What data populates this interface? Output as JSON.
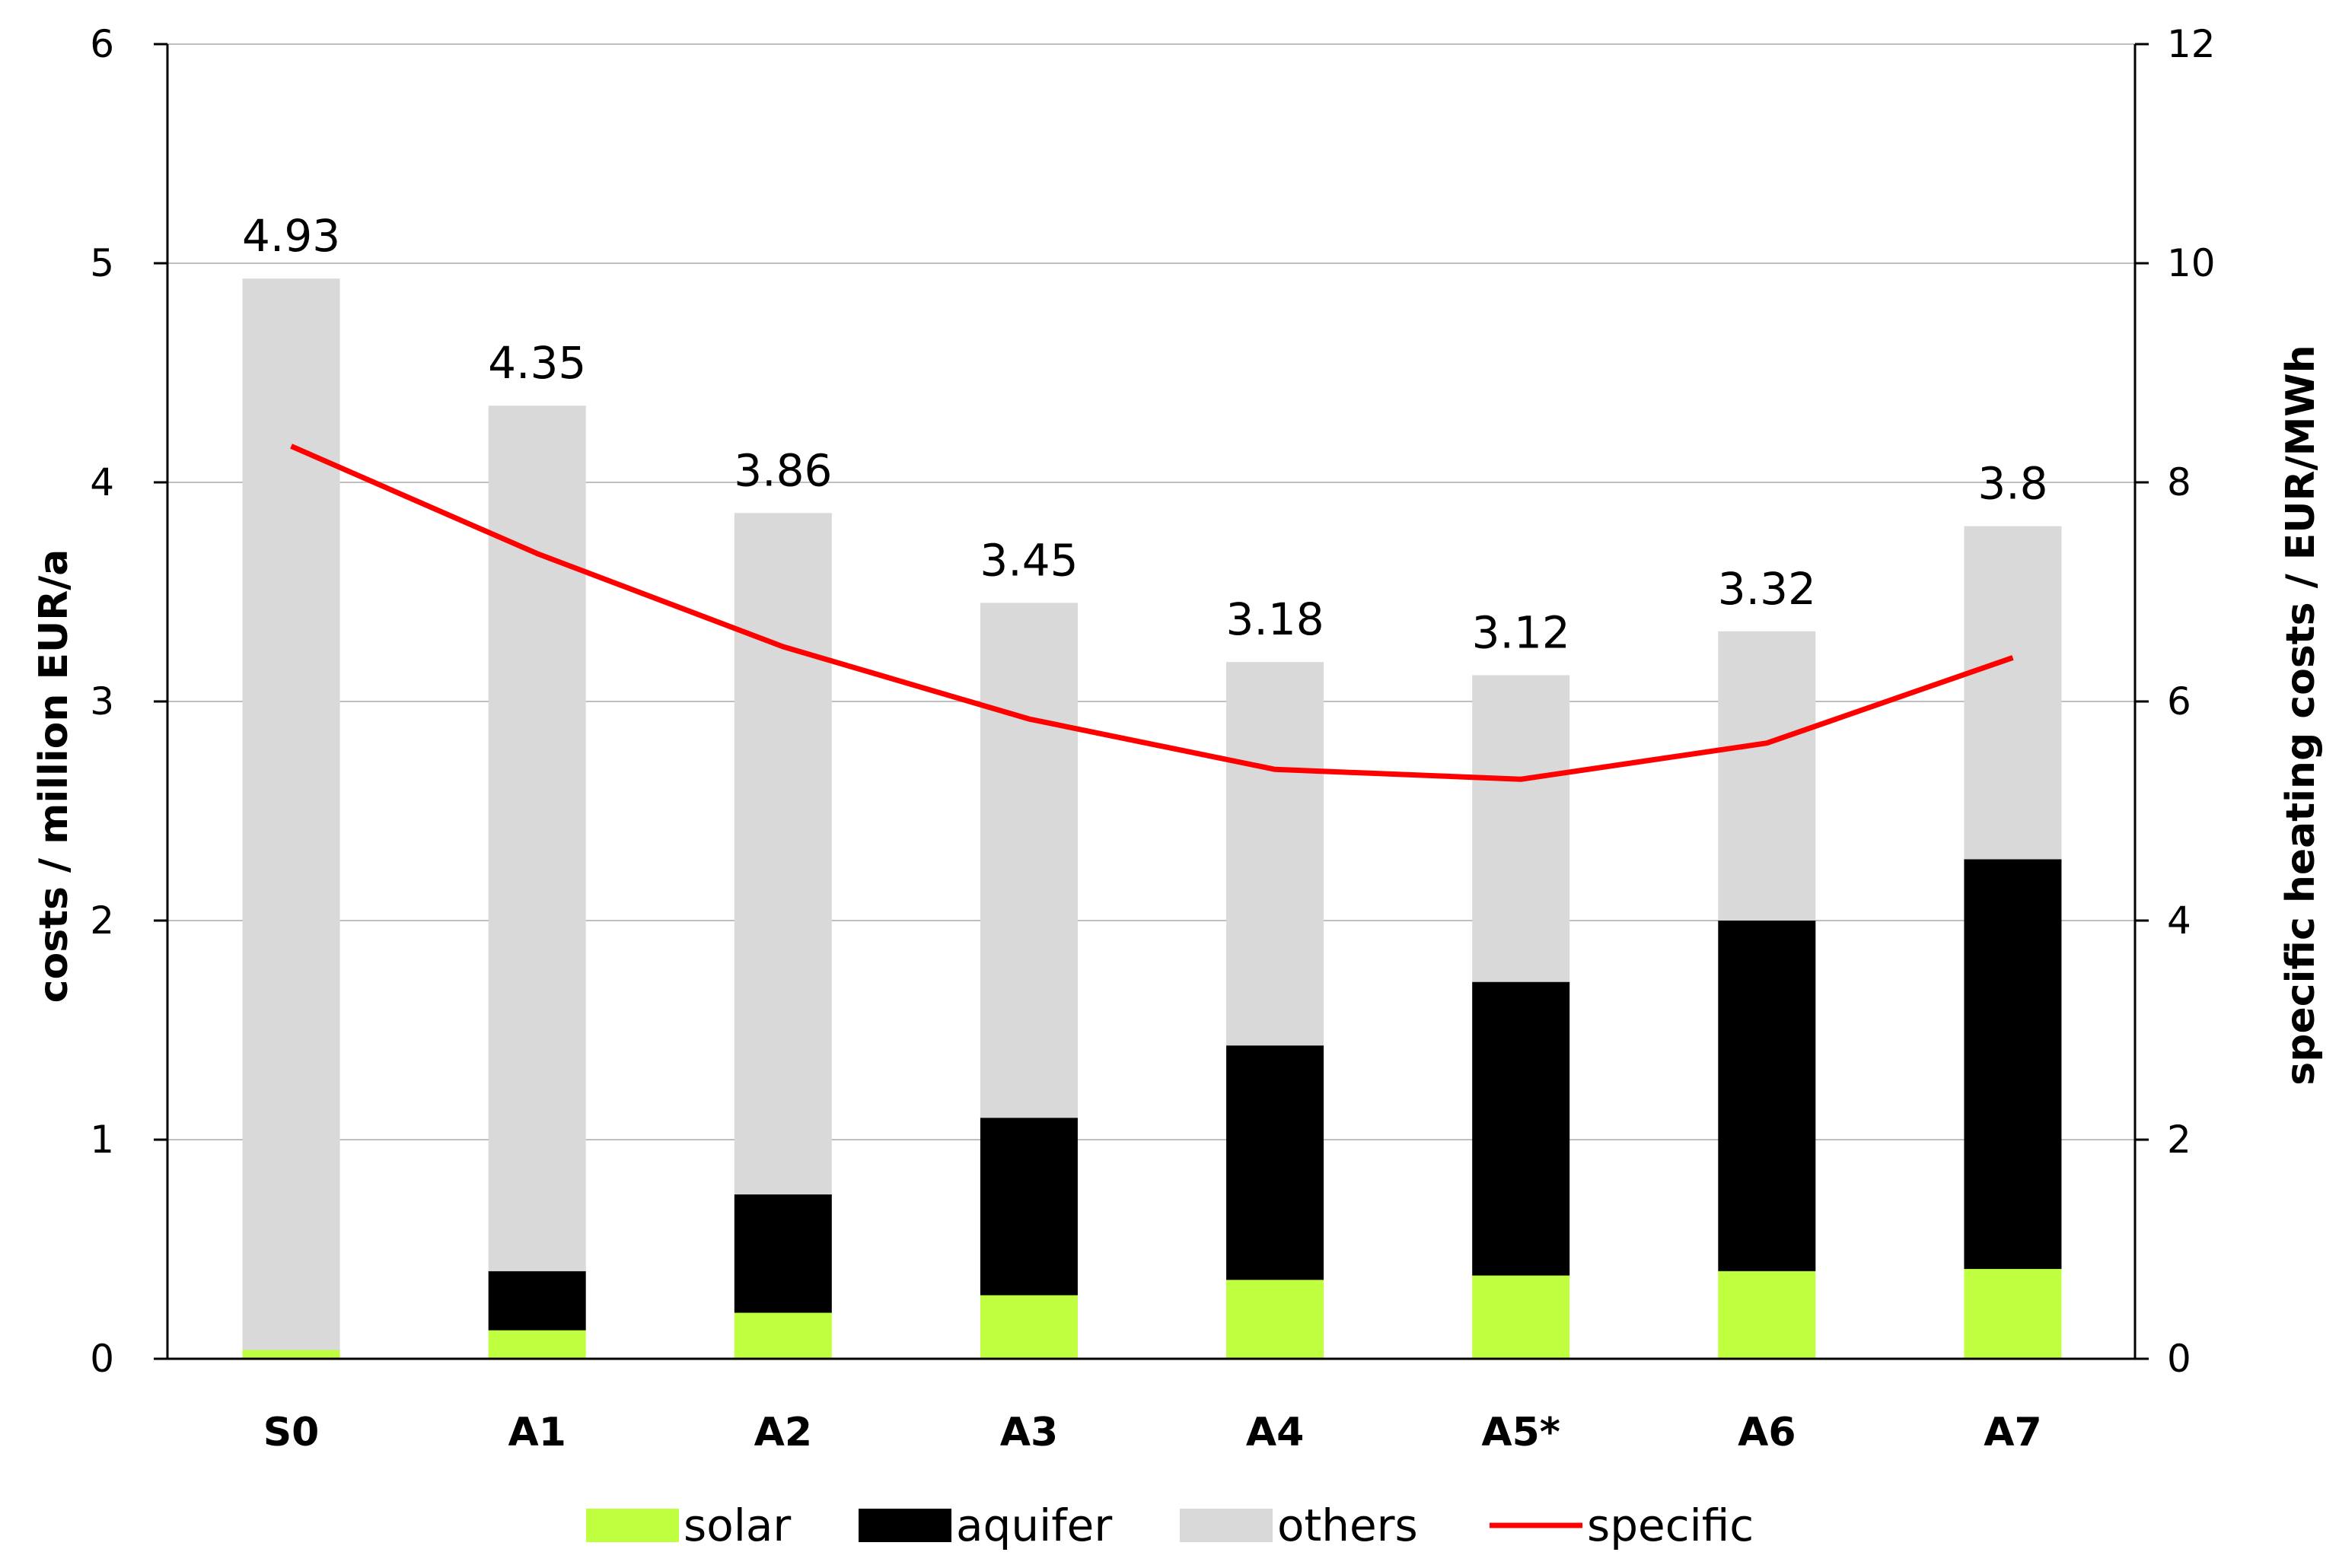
{
  "chart_data": {
    "type": "bar",
    "stacked": true,
    "categories": [
      "S0",
      "A1",
      "A2",
      "A3",
      "A4",
      "A5*",
      "A6",
      "A7"
    ],
    "series": [
      {
        "name": "solar",
        "color": "#bfff3f",
        "values": [
          0.04,
          0.13,
          0.21,
          0.29,
          0.36,
          0.38,
          0.4,
          0.41
        ]
      },
      {
        "name": "aquifer",
        "color": "#000000",
        "values": [
          0.0,
          0.27,
          0.54,
          0.81,
          1.07,
          1.34,
          1.6,
          1.87
        ]
      },
      {
        "name": "others",
        "color": "#d9d9d9",
        "values": [
          4.89,
          3.95,
          3.11,
          2.35,
          1.75,
          1.4,
          1.32,
          1.52
        ]
      }
    ],
    "totals": [
      "4.93",
      "4.35",
      "3.86",
      "3.45",
      "3.18",
      "3.12",
      "3.32",
      "3.8"
    ],
    "line_series": {
      "name": "specific",
      "color": "#ff0000",
      "axis": "right",
      "values": [
        8.33,
        7.35,
        6.5,
        5.84,
        5.38,
        5.29,
        5.62,
        6.4
      ]
    },
    "ylabel": "costs / million EUR/a",
    "y2label": "specific heating costs / EUR/MWh",
    "ylim": [
      0,
      6
    ],
    "y2lim": [
      0,
      12
    ],
    "yticks": [
      "0",
      "1",
      "2",
      "3",
      "4",
      "5",
      "6"
    ],
    "y2ticks": [
      "0",
      "2",
      "4",
      "6",
      "8",
      "10",
      "12"
    ],
    "grid": true,
    "legend_position": "bottom"
  },
  "legend": {
    "items": [
      {
        "label": "solar",
        "kind": "box",
        "color": "#bfff3f"
      },
      {
        "label": "aquifer",
        "kind": "box",
        "color": "#000000"
      },
      {
        "label": "others",
        "kind": "box",
        "color": "#d9d9d9"
      },
      {
        "label": "specific",
        "kind": "line",
        "color": "#ff0000"
      }
    ]
  }
}
